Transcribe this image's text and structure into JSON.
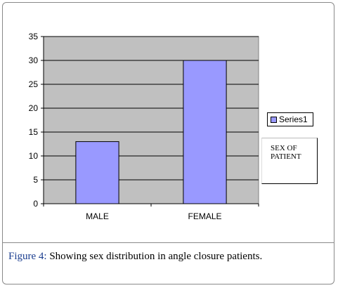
{
  "chart_data": {
    "type": "bar",
    "categories": [
      "MALE",
      "FEMALE"
    ],
    "series": [
      {
        "name": "Series1",
        "values": [
          13,
          30
        ]
      }
    ],
    "yticks": [
      0,
      5,
      10,
      15,
      20,
      25,
      30,
      35
    ],
    "ylim": [
      0,
      35
    ],
    "grid": true,
    "legend": "right",
    "colors": {
      "bar": "#9999ff",
      "plot_bg": "#c0c0c0"
    },
    "annotation": "SEX OF PATIENT"
  },
  "caption": {
    "label": "Figure 4:",
    "text": " Showing sex distribution in angle closure patients."
  }
}
